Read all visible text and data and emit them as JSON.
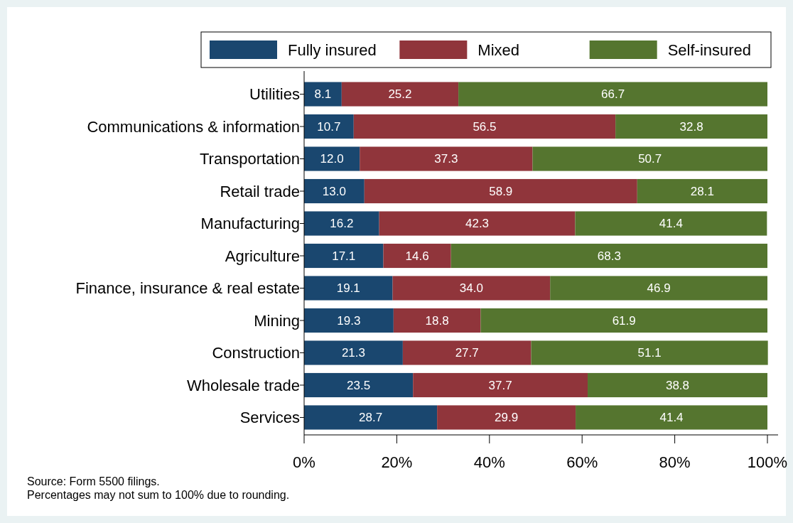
{
  "chart_data": {
    "type": "bar",
    "orientation": "horizontal",
    "stacked": true,
    "legend": "top",
    "categories": [
      "Utilities",
      "Communications & information",
      "Transportation",
      "Retail trade",
      "Manufacturing",
      "Agriculture",
      "Finance, insurance & real estate",
      "Mining",
      "Construction",
      "Wholesale trade",
      "Services"
    ],
    "series": [
      {
        "name": "Fully insured",
        "color": "#1a476f",
        "values": [
          8.1,
          10.7,
          12.0,
          13.0,
          16.2,
          17.1,
          19.1,
          19.3,
          21.3,
          23.5,
          28.7
        ],
        "value_labels": [
          "8.1",
          "10.7",
          "12.0",
          "13.0",
          "16.2",
          "17.1",
          "19.1",
          "19.3",
          "21.3",
          "23.5",
          "28.7"
        ]
      },
      {
        "name": "Mixed",
        "color": "#90353b",
        "values": [
          25.2,
          56.5,
          37.3,
          58.9,
          42.3,
          14.6,
          34.0,
          18.8,
          27.7,
          37.7,
          29.9
        ],
        "value_labels": [
          "25.2",
          "56.5",
          "37.3",
          "58.9",
          "42.3",
          "14.6",
          "34.0",
          "18.8",
          "27.7",
          "37.7",
          "29.9"
        ]
      },
      {
        "name": "Self-insured",
        "color": "#55752f",
        "values": [
          66.7,
          32.8,
          50.7,
          28.1,
          41.4,
          68.3,
          46.9,
          61.9,
          51.1,
          38.8,
          41.4
        ],
        "value_labels": [
          "66.7",
          "32.8",
          "50.7",
          "28.1",
          "41.4",
          "68.3",
          "46.9",
          "61.9",
          "51.1",
          "38.8",
          "41.4"
        ]
      }
    ],
    "xlim": [
      0,
      100
    ],
    "xticks": [
      {
        "value": 0,
        "label": "0%"
      },
      {
        "value": 20,
        "label": "20%"
      },
      {
        "value": 40,
        "label": "40%"
      },
      {
        "value": 60,
        "label": "60%"
      },
      {
        "value": 80,
        "label": "80%"
      },
      {
        "value": 100,
        "label": "100%"
      }
    ],
    "annotations": [
      "Source: Form 5500 filings.",
      "Percentages may not sum to 100% due to rounding."
    ]
  }
}
